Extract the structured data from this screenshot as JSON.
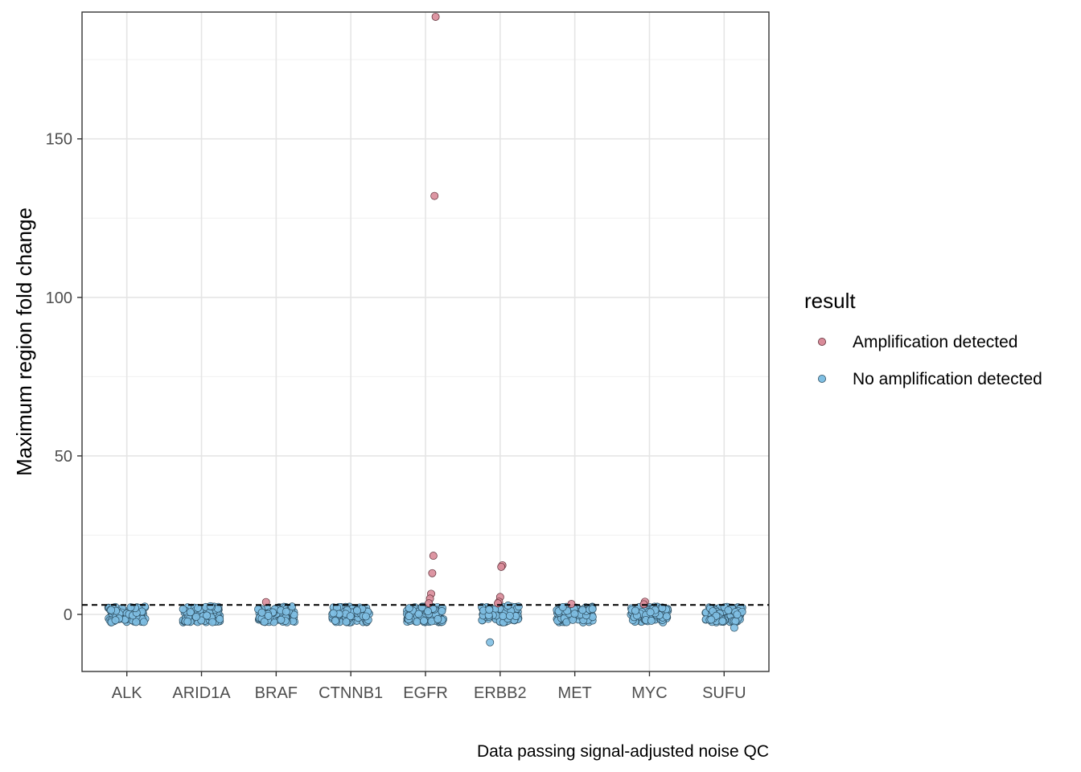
{
  "chart_data": {
    "type": "scatter",
    "xlabel": "",
    "ylabel": "Maximum region fold change",
    "caption": "Data passing signal-adjusted noise QC",
    "categories": [
      "ALK",
      "ARID1A",
      "BRAF",
      "CTNNB1",
      "EGFR",
      "ERBB2",
      "MET",
      "MYC",
      "SUFU"
    ],
    "ylim": [
      -18,
      190
    ],
    "yticks": [
      0,
      50,
      100,
      150
    ],
    "threshold": 3,
    "grid": true,
    "legend": {
      "title": "result",
      "position": "right",
      "entries": [
        {
          "name": "Amplification detected",
          "color": "#d98b99"
        },
        {
          "name": "No amplification detected",
          "color": "#7fbfe3"
        }
      ]
    },
    "series": [
      {
        "name": "Amplification detected",
        "color": "#d98b99",
        "points": [
          {
            "category": "BRAF",
            "y": 3.9
          },
          {
            "category": "EGFR",
            "y": 188.5
          },
          {
            "category": "EGFR",
            "y": 132.0
          },
          {
            "category": "EGFR",
            "y": 18.5
          },
          {
            "category": "EGFR",
            "y": 13.0
          },
          {
            "category": "EGFR",
            "y": 6.5
          },
          {
            "category": "EGFR",
            "y": 5.0
          },
          {
            "category": "EGFR",
            "y": 3.5
          },
          {
            "category": "ERBB2",
            "y": 15.5
          },
          {
            "category": "ERBB2",
            "y": 15.0
          },
          {
            "category": "ERBB2",
            "y": 5.5
          },
          {
            "category": "ERBB2",
            "y": 4.0
          },
          {
            "category": "ERBB2",
            "y": 3.5
          },
          {
            "category": "MET",
            "y": 3.3
          },
          {
            "category": "MYC",
            "y": 4.0
          },
          {
            "category": "MYC",
            "y": 3.2
          }
        ]
      },
      {
        "name": "No amplification detected",
        "color": "#7fbfe3",
        "points": [
          {
            "category": "ERBB2",
            "y": -8.8
          },
          {
            "category": "SUFU",
            "y": -4.2
          },
          {
            "category": "ARID1A",
            "y": 2.6
          },
          {
            "category": "ERBB2",
            "y": 2.8
          }
        ],
        "bulk_range": [
          -2.5,
          2.5
        ]
      }
    ]
  }
}
